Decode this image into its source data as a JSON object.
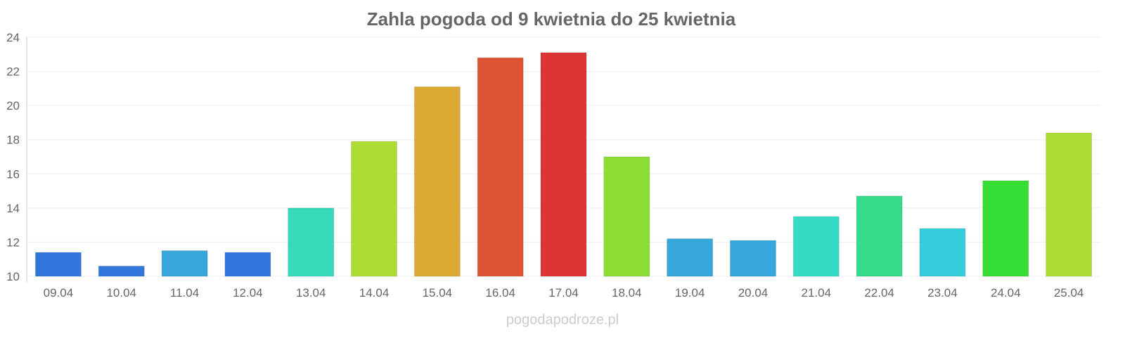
{
  "chart_data": {
    "type": "bar",
    "title": "Zahla pogoda od 9 kwietnia do 25 kwietnia",
    "xlabel": "",
    "ylabel": "",
    "ylim": [
      10,
      24
    ],
    "yticks": [
      10,
      12,
      14,
      16,
      18,
      20,
      22,
      24
    ],
    "grid": true,
    "categories": [
      "09.04",
      "10.04",
      "11.04",
      "12.04",
      "13.04",
      "14.04",
      "15.04",
      "16.04",
      "17.04",
      "18.04",
      "19.04",
      "20.04",
      "21.04",
      "22.04",
      "23.04",
      "24.04",
      "25.04"
    ],
    "values": [
      11.4,
      10.6,
      11.5,
      11.4,
      14.0,
      17.9,
      21.1,
      22.8,
      23.1,
      17.0,
      12.2,
      12.1,
      13.5,
      14.7,
      12.8,
      15.6,
      18.4
    ],
    "colors": [
      "#3376db",
      "#3376db",
      "#35a7db",
      "#3376db",
      "#35dbb9",
      "#addd35",
      "#dca935",
      "#de5535",
      "#dc3535",
      "#8bdd35",
      "#35a7db",
      "#35a7db",
      "#35dbc4",
      "#35db8b",
      "#35cddb",
      "#35dd35",
      "#addd35"
    ]
  },
  "watermark": "pogodapodroze.pl"
}
